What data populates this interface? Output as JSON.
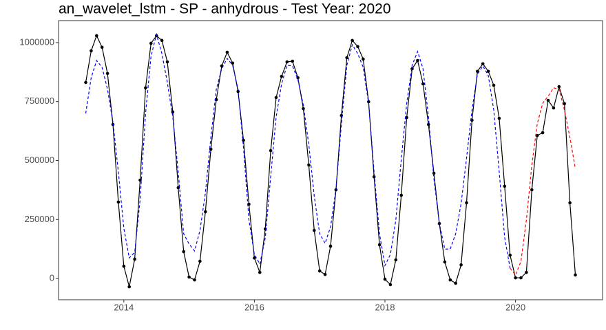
{
  "chart_data": {
    "type": "line",
    "title": "an_wavelet_lstm - SP - anhydrous - Test Year: 2020",
    "x": [
      "2013-06",
      "2013-07",
      "2013-08",
      "2013-09",
      "2013-10",
      "2013-11",
      "2013-12",
      "2014-01",
      "2014-02",
      "2014-03",
      "2014-04",
      "2014-05",
      "2014-06",
      "2014-07",
      "2014-08",
      "2014-09",
      "2014-10",
      "2014-11",
      "2014-12",
      "2015-01",
      "2015-02",
      "2015-03",
      "2015-04",
      "2015-05",
      "2015-06",
      "2015-07",
      "2015-08",
      "2015-09",
      "2015-10",
      "2015-11",
      "2015-12",
      "2016-01",
      "2016-02",
      "2016-03",
      "2016-04",
      "2016-05",
      "2016-06",
      "2016-07",
      "2016-08",
      "2016-09",
      "2016-10",
      "2016-11",
      "2016-12",
      "2017-01",
      "2017-02",
      "2017-03",
      "2017-04",
      "2017-05",
      "2017-06",
      "2017-07",
      "2017-08",
      "2017-09",
      "2017-10",
      "2017-11",
      "2017-12",
      "2018-01",
      "2018-02",
      "2018-03",
      "2018-04",
      "2018-05",
      "2018-06",
      "2018-07",
      "2018-08",
      "2018-09",
      "2018-10",
      "2018-11",
      "2018-12",
      "2019-01",
      "2019-02",
      "2019-03",
      "2019-04",
      "2019-05",
      "2019-06",
      "2019-07",
      "2019-08",
      "2019-09",
      "2019-10",
      "2019-11",
      "2019-12",
      "2020-01",
      "2020-02",
      "2020-03",
      "2020-04",
      "2020-05",
      "2020-06",
      "2020-07",
      "2020-08",
      "2020-09",
      "2020-10",
      "2020-11",
      "2020-12"
    ],
    "series": [
      {
        "color": "#000000",
        "dash": false,
        "markers": true,
        "values": [
          831000,
          965000,
          1029000,
          980000,
          869000,
          653000,
          324000,
          52000,
          -35000,
          82000,
          417000,
          808000,
          997000,
          1029000,
          1009000,
          918000,
          706000,
          385000,
          114000,
          6000,
          -6000,
          73000,
          283000,
          548000,
          758000,
          901000,
          959000,
          913000,
          793000,
          586000,
          315000,
          87000,
          26000,
          210000,
          542000,
          767000,
          857000,
          918000,
          921000,
          851000,
          720000,
          481000,
          204000,
          32000,
          17000,
          137000,
          376000,
          691000,
          936000,
          1009000,
          983000,
          930000,
          749000,
          431000,
          143000,
          -3000,
          -26000,
          79000,
          353000,
          682000,
          889000,
          924000,
          825000,
          653000,
          446000,
          233000,
          70000,
          -6000,
          -20000,
          58000,
          321000,
          671000,
          878000,
          910000,
          878000,
          819000,
          679000,
          391000,
          99000,
          3000,
          3000,
          26000,
          376000,
          606000,
          618000,
          755000,
          723000,
          813000,
          741000,
          321000,
          15000
        ]
      },
      {
        "color": "#0000ff",
        "dash": true,
        "markers": false,
        "values": [
          700000,
          851000,
          924000,
          895000,
          802000,
          662000,
          452000,
          213000,
          87000,
          111000,
          335000,
          700000,
          942000,
          1035000,
          953000,
          831000,
          685000,
          452000,
          190000,
          146000,
          117000,
          204000,
          364000,
          598000,
          802000,
          889000,
          933000,
          904000,
          802000,
          554000,
          248000,
          102000,
          61000,
          172000,
          434000,
          685000,
          825000,
          904000,
          901000,
          843000,
          735000,
          569000,
          350000,
          190000,
          149000,
          219000,
          379000,
          656000,
          904000,
          991000,
          953000,
          895000,
          743000,
          452000,
          190000,
          55000,
          102000,
          248000,
          504000,
          743000,
          904000,
          962000,
          889000,
          685000,
          423000,
          233000,
          125000,
          125000,
          190000,
          318000,
          510000,
          714000,
          866000,
          901000,
          860000,
          714000,
          452000,
          175000,
          44000,
          null,
          null,
          null,
          null,
          null,
          null,
          null,
          null,
          null,
          null,
          null,
          null
        ]
      },
      {
        "color": "#ff0000",
        "dash": true,
        "markers": false,
        "values": [
          null,
          null,
          null,
          null,
          null,
          null,
          null,
          null,
          null,
          null,
          null,
          null,
          null,
          null,
          null,
          null,
          null,
          null,
          null,
          null,
          null,
          null,
          null,
          null,
          null,
          null,
          null,
          null,
          null,
          null,
          null,
          null,
          null,
          null,
          null,
          null,
          null,
          null,
          null,
          null,
          null,
          null,
          null,
          null,
          null,
          null,
          null,
          null,
          null,
          null,
          null,
          null,
          null,
          null,
          null,
          null,
          null,
          null,
          null,
          null,
          null,
          null,
          null,
          null,
          null,
          null,
          null,
          null,
          null,
          null,
          null,
          null,
          null,
          null,
          null,
          null,
          null,
          null,
          44000,
          15000,
          73000,
          248000,
          481000,
          656000,
          743000,
          773000,
          808000,
          802000,
          714000,
          598000,
          466000
        ]
      }
    ],
    "xlim": [
      "2013-01",
      "2021-05"
    ],
    "xticks": [
      {
        "value": "2014-01",
        "label": "2014"
      },
      {
        "value": "2016-01",
        "label": "2016"
      },
      {
        "value": "2018-01",
        "label": "2018"
      },
      {
        "value": "2020-01",
        "label": "2020"
      }
    ],
    "ylim": [
      -90000,
      1093000
    ],
    "yticks": [
      0,
      250000,
      500000,
      750000,
      1000000
    ],
    "grid": false
  }
}
